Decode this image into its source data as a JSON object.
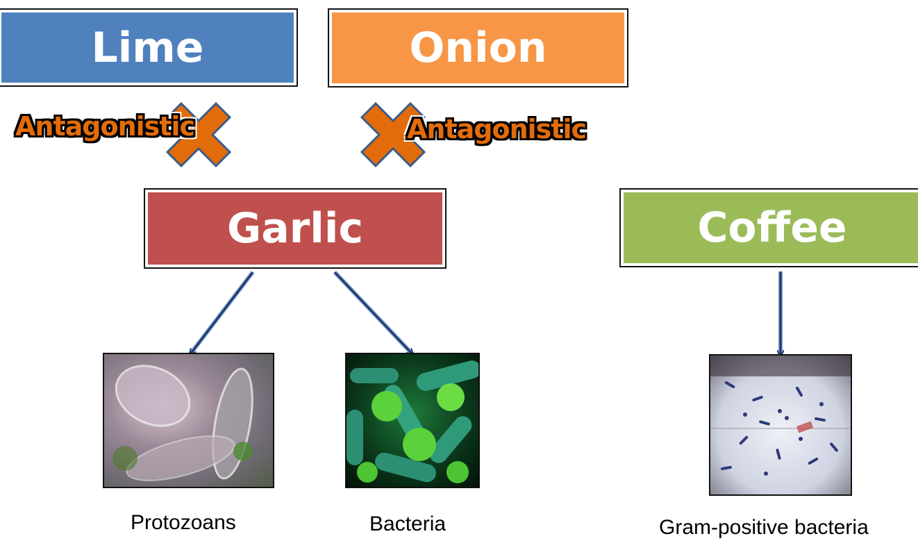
{
  "boxes": {
    "lime": {
      "label": "Lime",
      "color": "#4f81bd"
    },
    "onion": {
      "label": "Onion",
      "color": "#f79646"
    },
    "garlic": {
      "label": "Garlic",
      "color": "#c0504d"
    },
    "coffee": {
      "label": "Coffee",
      "color": "#9bbb59"
    }
  },
  "relations": {
    "left": {
      "label": "Antagonistic",
      "icon": "cross-icon"
    },
    "right": {
      "label": "Antagonistic",
      "icon": "cross-icon"
    }
  },
  "images": {
    "protozoa": {
      "caption": "Protozoans",
      "icon": "protozoa-photo"
    },
    "bacteria": {
      "caption": "Bacteria",
      "icon": "bacteria-photo"
    },
    "gram": {
      "caption": "Gram-positive bacteria",
      "icon": "gram-positive-micrograph"
    }
  },
  "colors": {
    "cross": "#e36c0a",
    "cross_outline": "#385d8a",
    "arrow": "#1f3a6b"
  }
}
